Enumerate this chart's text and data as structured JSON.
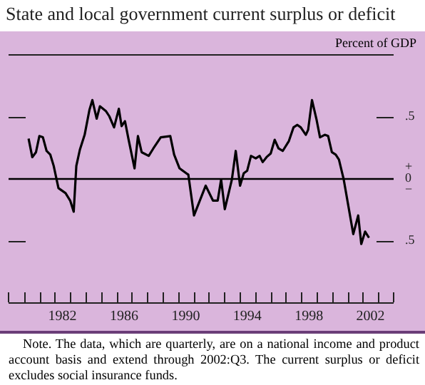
{
  "chart_data": {
    "type": "line",
    "title": "State and local government current surplus or deficit",
    "ylabel": "Percent of GDP",
    "annotations": [
      "Note. The data, which are quarterly, are on a national income and product account basis and extend through 2002:Q3. The current surplus or deficit excludes social insurance funds."
    ],
    "x": [
      1980.3,
      1980.54,
      1980.78,
      1981.0,
      1981.23,
      1981.47,
      1981.71,
      1981.93,
      1982.24,
      1982.7,
      1983.0,
      1983.23,
      1983.4,
      1983.63,
      1983.94,
      1984.25,
      1984.44,
      1984.72,
      1984.93,
      1985.33,
      1985.54,
      1985.85,
      1986.16,
      1986.34,
      1986.56,
      1986.78,
      1987.18,
      1987.4,
      1987.64,
      1988.1,
      1988.4,
      1988.88,
      1989.5,
      1989.75,
      1990.1,
      1990.54,
      1990.67,
      1991.04,
      1991.8,
      1992.27,
      1992.58,
      1992.8,
      1993.04,
      1993.5,
      1993.75,
      1994.03,
      1994.27,
      1994.49,
      1994.74,
      1995.05,
      1995.3,
      1995.5,
      1995.75,
      1996.02,
      1996.28,
      1996.53,
      1996.8,
      1997.2,
      1997.5,
      1997.75,
      1997.97,
      1998.3,
      1998.45,
      1998.7,
      1999.0,
      1999.22,
      1999.53,
      1999.75,
      1999.99,
      2000.24,
      2000.45,
      2000.76,
      2001.38,
      2001.7,
      2001.9,
      2002.15,
      2002.4
    ],
    "values": [
      0.32,
      0.17,
      0.21,
      0.34,
      0.33,
      0.22,
      0.19,
      0.1,
      -0.08,
      -0.12,
      -0.18,
      -0.27,
      0.1,
      0.23,
      0.35,
      0.55,
      0.63,
      0.48,
      0.58,
      0.54,
      0.5,
      0.41,
      0.56,
      0.42,
      0.46,
      0.32,
      0.08,
      0.34,
      0.21,
      0.18,
      0.24,
      0.33,
      0.34,
      0.19,
      0.08,
      0.04,
      0.03,
      -0.3,
      -0.06,
      -0.18,
      -0.18,
      -0.01,
      -0.25,
      -0.01,
      0.22,
      -0.06,
      0.04,
      0.06,
      0.18,
      0.16,
      0.18,
      0.13,
      0.17,
      0.2,
      0.31,
      0.24,
      0.22,
      0.3,
      0.41,
      0.43,
      0.41,
      0.35,
      0.39,
      0.63,
      0.47,
      0.33,
      0.35,
      0.34,
      0.21,
      0.19,
      0.15,
      -0.01,
      -0.45,
      -0.3,
      -0.53,
      -0.43,
      -0.48
    ],
    "color": "#000000",
    "marker": "none",
    "line_style": "solid",
    "grid": false,
    "legend": false,
    "ylim": [
      -1,
      1
    ],
    "yticks": [
      {
        "value": 0.5,
        "label": ".5"
      },
      {
        "value": 0,
        "label": "+\n0\n−"
      },
      {
        "value": -0.5,
        "label": ".5"
      }
    ],
    "xlim": [
      1979,
      2004
    ],
    "xticks": [
      {
        "value": 1980,
        "label": null
      },
      {
        "value": 1981,
        "label": null
      },
      {
        "value": 1982,
        "label": null
      },
      {
        "value": 1982.5,
        "label": "1982"
      },
      {
        "value": 1983,
        "label": null
      },
      {
        "value": 1984,
        "label": null
      },
      {
        "value": 1985,
        "label": null
      },
      {
        "value": 1986,
        "label": null
      },
      {
        "value": 1986.5,
        "label": "1986"
      },
      {
        "value": 1987,
        "label": null
      },
      {
        "value": 1988,
        "label": null
      },
      {
        "value": 1989,
        "label": null
      },
      {
        "value": 1990,
        "label": null
      },
      {
        "value": 1990.5,
        "label": "1990"
      },
      {
        "value": 1991,
        "label": null
      },
      {
        "value": 1992,
        "label": null
      },
      {
        "value": 1993,
        "label": null
      },
      {
        "value": 1994,
        "label": null
      },
      {
        "value": 1994.5,
        "label": "1994"
      },
      {
        "value": 1995,
        "label": null
      },
      {
        "value": 1996,
        "label": null
      },
      {
        "value": 1997,
        "label": null
      },
      {
        "value": 1998,
        "label": null
      },
      {
        "value": 1998.5,
        "label": "1998"
      },
      {
        "value": 1999,
        "label": null
      },
      {
        "value": 2000,
        "label": null
      },
      {
        "value": 2001,
        "label": null
      },
      {
        "value": 2002,
        "label": null
      },
      {
        "value": 2002.5,
        "label": "2002"
      },
      {
        "value": 2003,
        "label": null
      }
    ],
    "ref_lines": [
      {
        "axis": "y",
        "value": 0,
        "color": "#000000"
      }
    ]
  }
}
